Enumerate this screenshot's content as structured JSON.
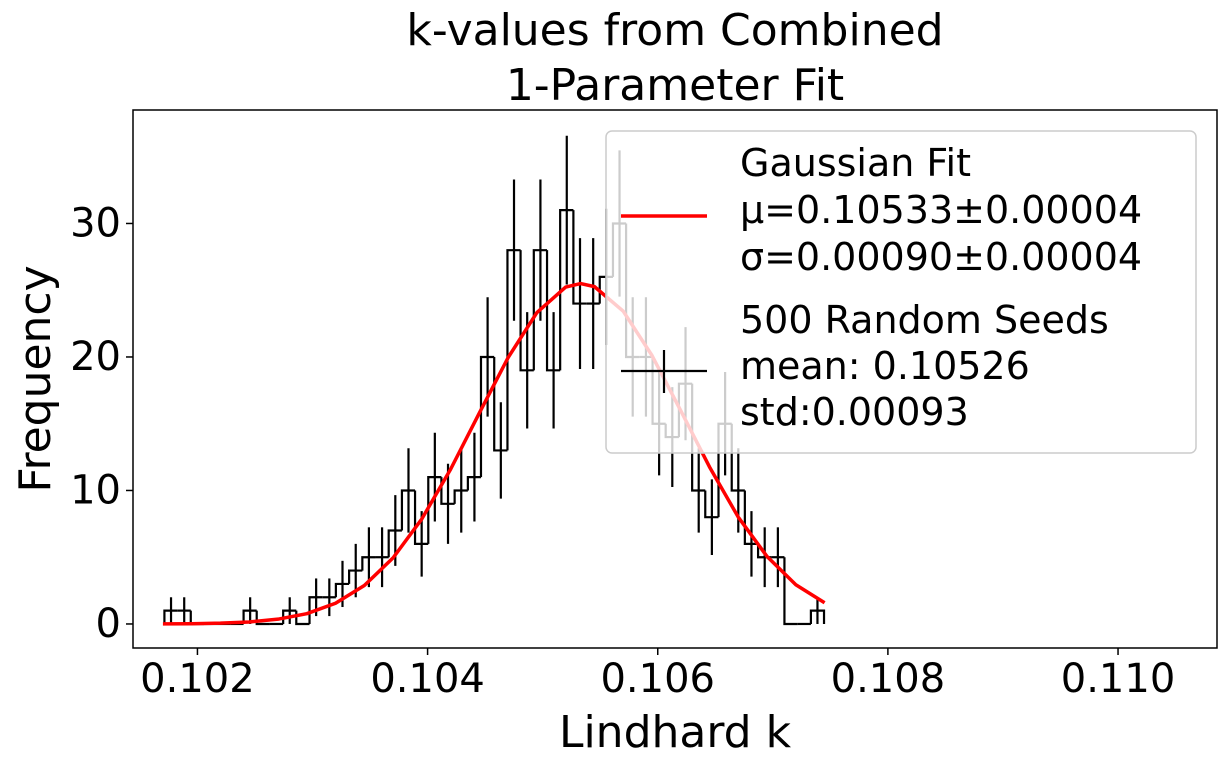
{
  "chart_data": {
    "type": "histogram",
    "title": "k-values from Combined\n1-Parameter Fit",
    "xlabel": "Lindhard k",
    "ylabel": "Frequency",
    "bins": [
      0.101713,
      0.101828,
      0.101942,
      0.102057,
      0.102171,
      0.102286,
      0.102401,
      0.102515,
      0.10263,
      0.102745,
      0.102859,
      0.102974,
      0.103089,
      0.103203,
      0.103318,
      0.103433,
      0.103547,
      0.103662,
      0.103777,
      0.103891,
      0.104006,
      0.10412,
      0.104235,
      0.10435,
      0.104464,
      0.104579,
      0.104694,
      0.104808,
      0.104923,
      0.105038,
      0.105152,
      0.105267,
      0.105382,
      0.105496,
      0.105611,
      0.105725,
      0.10584,
      0.105955,
      0.106069,
      0.106184,
      0.106299,
      0.106413,
      0.106528,
      0.106643,
      0.106757,
      0.106872,
      0.106987,
      0.107101,
      0.107216,
      0.107331,
      0.107445
    ],
    "series": [
      {
        "name": "500 Random Seeds\nmean: 0.10526\nstd:0.00093",
        "color": "#000000",
        "values": [
          1,
          1,
          0,
          0,
          0,
          0,
          1,
          0,
          0,
          1,
          0,
          2,
          2,
          3,
          4,
          5,
          5,
          7,
          10,
          6,
          11,
          9,
          10,
          11,
          20,
          13,
          28,
          19,
          28,
          19,
          31,
          24,
          24,
          26,
          30,
          20,
          20,
          15,
          14,
          18,
          10,
          8,
          15,
          10,
          6,
          5,
          5,
          0,
          0,
          1
        ],
        "errors": [
          1,
          1,
          0,
          0,
          0,
          0,
          1,
          0,
          0,
          1,
          0,
          1.41,
          1.41,
          1.73,
          2,
          2.24,
          2.24,
          2.65,
          3.16,
          2.45,
          3.32,
          3,
          3.16,
          3.32,
          4.47,
          3.61,
          5.29,
          4.36,
          5.29,
          4.36,
          5.57,
          4.9,
          4.9,
          5.1,
          5.48,
          4.47,
          4.47,
          3.87,
          3.74,
          4.24,
          3.16,
          2.83,
          3.87,
          3.16,
          2.45,
          2.24,
          2.24,
          0,
          0,
          1
        ]
      }
    ],
    "fit": {
      "type": "line",
      "name": "Gaussian Fit\nμ=0.10533±0.00004\nσ=0.00090±0.00004",
      "color": "#ff0000",
      "x": [
        0.1017,
        0.10195,
        0.1022,
        0.10245,
        0.1027,
        0.10295,
        0.1032,
        0.10345,
        0.1037,
        0.10395,
        0.1042,
        0.10445,
        0.1047,
        0.10495,
        0.1052,
        0.10533,
        0.10545,
        0.1057,
        0.10595,
        0.1062,
        0.10645,
        0.1067,
        0.10695,
        0.1072,
        0.10745
      ],
      "values": [
        0.01,
        0.02,
        0.06,
        0.15,
        0.36,
        0.77,
        1.55,
        2.88,
        4.95,
        7.87,
        11.59,
        15.81,
        19.96,
        23.33,
        25.24,
        25.5,
        25.27,
        23.43,
        20.11,
        15.98,
        11.76,
        8.0,
        5.05,
        2.94,
        1.59
      ]
    },
    "xlim": [
      0.10144,
      0.11086
    ],
    "ylim": [
      -1.8,
      38.5
    ],
    "xticks": [
      0.102,
      0.104,
      0.106,
      0.108,
      {
        "value": 0.11,
        "label": "0.110"
      }
    ],
    "yticks": [
      0,
      10,
      20,
      30
    ],
    "legend": "upper right"
  }
}
